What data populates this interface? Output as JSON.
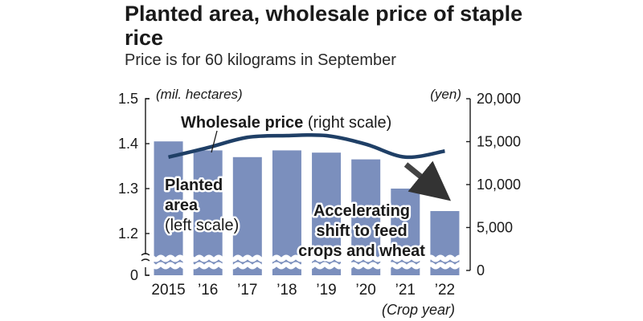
{
  "title": "Planted area, wholesale price of staple rice",
  "subtitle": "Price is for 60 kilograms in September",
  "chart_data": {
    "type": "bar+line",
    "categories": [
      "2015",
      "’16",
      "’17",
      "’18",
      "’19",
      "’20",
      "’21",
      "’22"
    ],
    "xlabel": "(Crop year)",
    "left_axis": {
      "unit": "(mil. hectares)",
      "ticks": [
        "1.5",
        "1.4",
        "1.3",
        "1.2",
        "0"
      ],
      "tick_values": [
        1.5,
        1.4,
        1.3,
        1.2,
        0
      ],
      "ylim": [
        1.1,
        1.5
      ],
      "broken": true
    },
    "right_axis": {
      "unit": "(yen)",
      "ticks": [
        "20,000",
        "15,000",
        "10,000",
        "5,000",
        "0"
      ],
      "tick_values": [
        20000,
        15000,
        10000,
        5000,
        0
      ],
      "ylim": [
        0,
        20000
      ]
    },
    "series": [
      {
        "name": "Planted area",
        "axis": "left",
        "kind": "bar",
        "values": [
          1.405,
          1.385,
          1.37,
          1.385,
          1.38,
          1.365,
          1.3,
          1.25
        ]
      },
      {
        "name": "Wholesale price",
        "axis": "right",
        "kind": "line",
        "values": [
          13200,
          14300,
          15500,
          15700,
          15700,
          14700,
          13200,
          13900
        ]
      }
    ],
    "annotations": {
      "price_label_bold": "Wholesale price",
      "price_label_rest": " (right scale)",
      "area_label_1": "Planted",
      "area_label_2": "area",
      "area_label_3": "(left scale)",
      "shift_1": "Accelerating",
      "shift_2": "shift to feed",
      "shift_3": "crops and wheat"
    },
    "colors": {
      "bar": "#7b8fbd",
      "line": "#1f3f66",
      "arrow": "#444444"
    }
  }
}
